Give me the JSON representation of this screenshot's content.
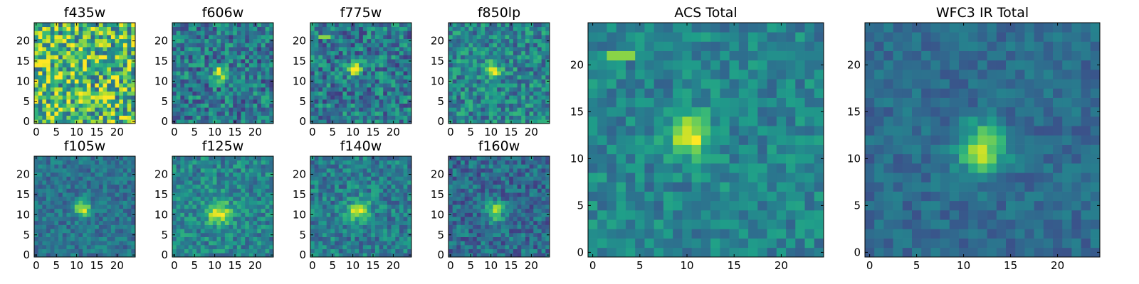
{
  "chart_data": [
    {
      "type": "heatmap",
      "title": "f435w",
      "grid": false,
      "xlim": [
        0,
        24
      ],
      "ylim": [
        0,
        24
      ],
      "xticks": [
        0,
        5,
        10,
        15,
        20
      ],
      "yticks": [
        0,
        5,
        10,
        15,
        20
      ],
      "source": {
        "center": [
          11,
          12
        ],
        "sigma": 1.2,
        "amplitude": 0.25,
        "noise": 0.38,
        "background": 0.68
      }
    },
    {
      "type": "heatmap",
      "title": "f606w",
      "grid": false,
      "xlim": [
        0,
        24
      ],
      "ylim": [
        0,
        24
      ],
      "xticks": [
        0,
        5,
        10,
        15,
        20
      ],
      "yticks": [
        0,
        5,
        10,
        15,
        20
      ],
      "source": {
        "center": [
          11,
          12
        ],
        "sigma": 1.2,
        "amplitude": 0.55,
        "noise": 0.24,
        "background": 0.4
      }
    },
    {
      "type": "heatmap",
      "title": "f775w",
      "grid": false,
      "xlim": [
        0,
        24
      ],
      "ylim": [
        0,
        24
      ],
      "xticks": [
        0,
        5,
        10,
        15,
        20
      ],
      "yticks": [
        0,
        5,
        10,
        15,
        20
      ],
      "source": {
        "center": [
          10.5,
          13
        ],
        "sigma": 1.1,
        "amplitude": 0.55,
        "noise": 0.24,
        "background": 0.4
      },
      "hotspot": [
        3,
        21
      ]
    },
    {
      "type": "heatmap",
      "title": "f850lp",
      "grid": false,
      "xlim": [
        0,
        24
      ],
      "ylim": [
        0,
        24
      ],
      "xticks": [
        0,
        5,
        10,
        15,
        20
      ],
      "yticks": [
        0,
        5,
        10,
        15,
        20
      ],
      "source": {
        "center": [
          10.5,
          12.5
        ],
        "sigma": 1.4,
        "amplitude": 0.45,
        "noise": 0.22,
        "background": 0.45
      }
    },
    {
      "type": "heatmap",
      "title": "f105w",
      "grid": false,
      "xlim": [
        0,
        24
      ],
      "ylim": [
        0,
        24
      ],
      "xticks": [
        0,
        5,
        10,
        15,
        20
      ],
      "yticks": [
        0,
        5,
        10,
        15,
        20
      ],
      "source": {
        "center": [
          11.5,
          11.5
        ],
        "sigma": 1.4,
        "amplitude": 0.6,
        "noise": 0.14,
        "background": 0.38
      }
    },
    {
      "type": "heatmap",
      "title": "f125w",
      "grid": false,
      "xlim": [
        0,
        24
      ],
      "ylim": [
        0,
        24
      ],
      "xticks": [
        0,
        5,
        10,
        15,
        20
      ],
      "yticks": [
        0,
        5,
        10,
        15,
        20
      ],
      "source": {
        "center": [
          11,
          10.5
        ],
        "sigma": 2.2,
        "amplitude": 0.45,
        "noise": 0.18,
        "background": 0.45
      }
    },
    {
      "type": "heatmap",
      "title": "f140w",
      "grid": false,
      "xlim": [
        0,
        24
      ],
      "ylim": [
        0,
        24
      ],
      "xticks": [
        0,
        5,
        10,
        15,
        20
      ],
      "yticks": [
        0,
        5,
        10,
        15,
        20
      ],
      "source": {
        "center": [
          11.5,
          11
        ],
        "sigma": 1.9,
        "amplitude": 0.5,
        "noise": 0.18,
        "background": 0.42
      }
    },
    {
      "type": "heatmap",
      "title": "f160w",
      "grid": false,
      "xlim": [
        0,
        24
      ],
      "ylim": [
        0,
        24
      ],
      "xticks": [
        0,
        5,
        10,
        15,
        20
      ],
      "yticks": [
        0,
        5,
        10,
        15,
        20
      ],
      "source": {
        "center": [
          11,
          11
        ],
        "sigma": 1.5,
        "amplitude": 0.55,
        "noise": 0.18,
        "background": 0.35
      }
    },
    {
      "type": "heatmap",
      "title": "ACS Total",
      "grid": false,
      "xlim": [
        0,
        24
      ],
      "ylim": [
        0,
        24
      ],
      "xticks": [
        0,
        5,
        10,
        15,
        20
      ],
      "yticks": [
        0,
        5,
        10,
        15,
        20
      ],
      "source": {
        "center": [
          10.5,
          12.5
        ],
        "sigma": 1.6,
        "amplitude": 0.5,
        "noise": 0.14,
        "background": 0.45
      },
      "hotspot": [
        3,
        21
      ]
    },
    {
      "type": "heatmap",
      "title": "WFC3 IR Total",
      "grid": false,
      "xlim": [
        0,
        24
      ],
      "ylim": [
        0,
        24
      ],
      "xticks": [
        0,
        5,
        10,
        15,
        20
      ],
      "yticks": [
        0,
        5,
        10,
        15,
        20
      ],
      "source": {
        "center": [
          12,
          11
        ],
        "sigma": 1.8,
        "amplitude": 0.55,
        "noise": 0.1,
        "background": 0.35
      }
    }
  ]
}
